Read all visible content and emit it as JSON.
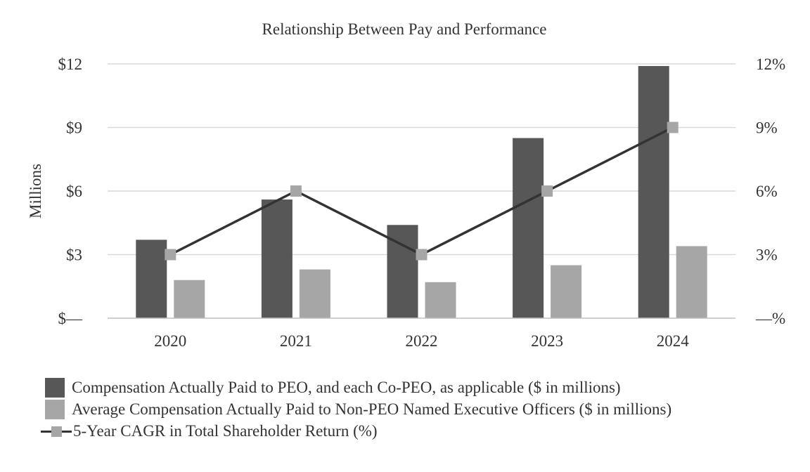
{
  "chart_data": {
    "type": "bar+line",
    "title": "Relationship Between Pay and Performance",
    "ylabel": "Millions",
    "categories": [
      "2020",
      "2021",
      "2022",
      "2023",
      "2024"
    ],
    "left_axis": {
      "ylim": [
        0,
        12
      ],
      "ticks": [
        0,
        3,
        6,
        9,
        12
      ],
      "tick_labels": [
        "$—",
        "$3",
        "$6",
        "$9",
        "$12"
      ]
    },
    "right_axis": {
      "ylim": [
        0,
        12
      ],
      "ticks": [
        0,
        3,
        6,
        9,
        12
      ],
      "tick_labels": [
        "—%",
        "3%",
        "6%",
        "9%",
        "12%"
      ]
    },
    "grid": true,
    "legend_position": "bottom",
    "series": [
      {
        "name": "Compensation Actually Paid to PEO, and each Co-PEO, as applicable ($ in millions)",
        "type": "bar",
        "axis": "left",
        "color": "#575757",
        "values": [
          3.7,
          5.6,
          4.4,
          8.5,
          11.9
        ]
      },
      {
        "name": "Average Compensation Actually Paid to Non-PEO Named Executive Officers ($ in millions)",
        "type": "bar",
        "axis": "left",
        "color": "#a6a6a6",
        "values": [
          1.8,
          2.3,
          1.7,
          2.5,
          3.4
        ]
      },
      {
        "name": "5-Year CAGR in Total Shareholder Return (%)",
        "type": "line",
        "axis": "right",
        "color": "#333333",
        "marker_color": "#a6a6a6",
        "values": [
          3,
          6,
          3,
          6,
          9
        ]
      }
    ]
  },
  "colors": {
    "background": "#ffffff",
    "text": "#333333",
    "grid": "#d9d9d9",
    "axis": "#bfbfbf"
  }
}
